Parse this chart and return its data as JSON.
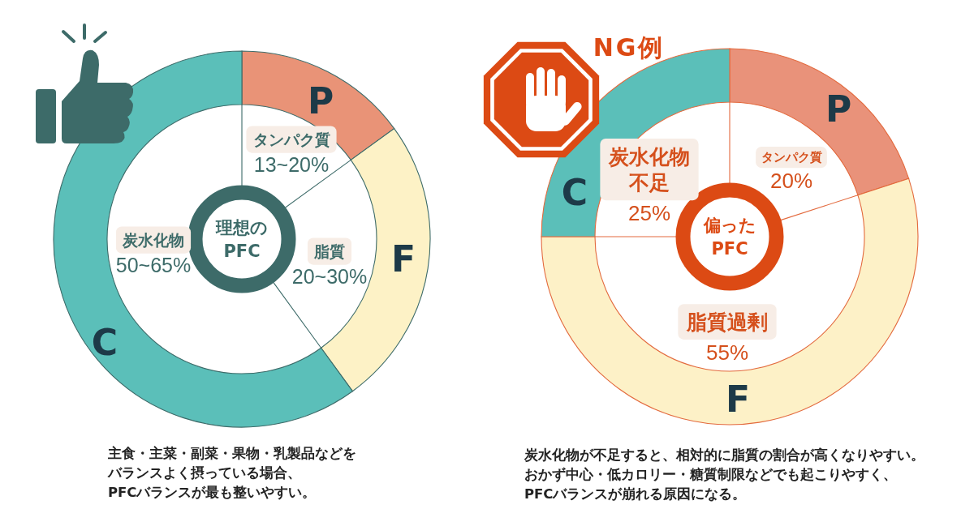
{
  "chart_data": [
    {
      "type": "donut",
      "subtitle": "理想の\nPFC",
      "categories": [
        "P",
        "F",
        "C"
      ],
      "values": [
        15,
        25,
        60
      ],
      "colors": [
        "#e99377",
        "#fdf2c6",
        "#5bbfb9"
      ],
      "annotations": [
        "タンパク質",
        "脂質",
        "炭水化物",
        "13~20%",
        "20~30%",
        "50~65%",
        "主食・主菜・副菜・果物・乳製品などをバランスよく摂っている場合、PFCバランスが最も整いやすい。"
      ]
    },
    {
      "type": "donut",
      "title": "NG例",
      "subtitle": "偏った\nPFC",
      "categories": [
        "P",
        "F",
        "C"
      ],
      "values": [
        20,
        55,
        25
      ],
      "colors": [
        "#e9927a",
        "#fdf1c7",
        "#5bbfb9"
      ],
      "value_labels": [
        "20%",
        "55%",
        "25%"
      ],
      "annotations": [
        "タンパク質",
        "脂質過剰",
        "炭水化物不足",
        "炭水化物が不足すると、相対的に脂質の割合が高くなりやすい。おかず中心・低カロリー・糖質制限などでも起こりやすく、PFCバランスが崩れる原因になる。"
      ]
    }
  ]
}
